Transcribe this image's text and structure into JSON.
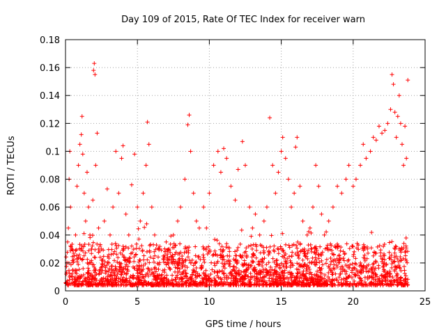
{
  "chart_data": {
    "type": "scatter",
    "title": "Day 109 of 2015, Rate Of TEC Index for receiver warn",
    "xlabel": "GPS time / hours",
    "ylabel": "ROTI / TECUs",
    "xlim": [
      0,
      25
    ],
    "ylim": [
      0,
      0.18
    ],
    "x_ticks": [
      0,
      5,
      10,
      15,
      20,
      25
    ],
    "x_tick_labels": [
      "0",
      "5",
      "10",
      "15",
      "20",
      "25"
    ],
    "y_ticks": [
      0,
      0.02,
      0.04,
      0.06,
      0.08,
      0.1,
      0.12,
      0.14,
      0.16,
      0.18
    ],
    "y_tick_labels": [
      "0",
      "0.02",
      "0.04",
      "0.06",
      "0.08",
      "0.1",
      "0.12",
      "0.14",
      "0.16",
      "0.18"
    ],
    "grid": true,
    "marker": "+",
    "series": [
      {
        "name": "ROTI",
        "color": "#ff0000",
        "points": [
          [
            0.05,
            0.012
          ],
          [
            0.1,
            0.02
          ],
          [
            0.15,
            0.035
          ],
          [
            0.2,
            0.045
          ],
          [
            0.25,
            0.08
          ],
          [
            0.3,
            0.1
          ],
          [
            0.35,
            0.06
          ],
          [
            0.4,
            0.03
          ],
          [
            0.5,
            0.015
          ],
          [
            0.6,
            0.025
          ],
          [
            0.7,
            0.04
          ],
          [
            0.8,
            0.075
          ],
          [
            0.9,
            0.09
          ],
          [
            1.0,
            0.105
          ],
          [
            1.1,
            0.112
          ],
          [
            1.15,
            0.125
          ],
          [
            1.2,
            0.098
          ],
          [
            1.3,
            0.07
          ],
          [
            1.4,
            0.05
          ],
          [
            1.5,
            0.085
          ],
          [
            1.6,
            0.06
          ],
          [
            1.7,
            0.04
          ],
          [
            1.8,
            0.03
          ],
          [
            1.9,
            0.065
          ],
          [
            1.95,
            0.158
          ],
          [
            2.0,
            0.163
          ],
          [
            2.05,
            0.155
          ],
          [
            2.1,
            0.09
          ],
          [
            2.2,
            0.113
          ],
          [
            2.3,
            0.045
          ],
          [
            2.5,
            0.03
          ],
          [
            2.7,
            0.05
          ],
          [
            2.9,
            0.073
          ],
          [
            3.1,
            0.04
          ],
          [
            3.3,
            0.06
          ],
          [
            3.5,
            0.1
          ],
          [
            3.7,
            0.07
          ],
          [
            3.9,
            0.095
          ],
          [
            4.0,
            0.104
          ],
          [
            4.2,
            0.055
          ],
          [
            4.4,
            0.04
          ],
          [
            4.6,
            0.076
          ],
          [
            4.8,
            0.098
          ],
          [
            5.0,
            0.06
          ],
          [
            5.2,
            0.05
          ],
          [
            5.4,
            0.07
          ],
          [
            5.6,
            0.09
          ],
          [
            5.7,
            0.121
          ],
          [
            5.8,
            0.105
          ],
          [
            6.0,
            0.06
          ],
          [
            6.2,
            0.04
          ],
          [
            6.5,
            0.03
          ],
          [
            6.8,
            0.025
          ],
          [
            7.0,
            0.035
          ],
          [
            7.2,
            0.03
          ],
          [
            7.5,
            0.04
          ],
          [
            7.8,
            0.05
          ],
          [
            8.0,
            0.06
          ],
          [
            8.3,
            0.08
          ],
          [
            8.5,
            0.119
          ],
          [
            8.6,
            0.126
          ],
          [
            8.7,
            0.1
          ],
          [
            8.9,
            0.07
          ],
          [
            9.1,
            0.05
          ],
          [
            9.3,
            0.045
          ],
          [
            9.6,
            0.06
          ],
          [
            9.8,
            0.045
          ],
          [
            10.0,
            0.07
          ],
          [
            10.3,
            0.09
          ],
          [
            10.6,
            0.1
          ],
          [
            10.8,
            0.085
          ],
          [
            11.0,
            0.102
          ],
          [
            11.2,
            0.095
          ],
          [
            11.5,
            0.075
          ],
          [
            11.8,
            0.065
          ],
          [
            12.0,
            0.087
          ],
          [
            12.3,
            0.107
          ],
          [
            12.5,
            0.09
          ],
          [
            12.8,
            0.06
          ],
          [
            13.0,
            0.045
          ],
          [
            13.2,
            0.055
          ],
          [
            13.5,
            0.04
          ],
          [
            13.8,
            0.05
          ],
          [
            14.0,
            0.06
          ],
          [
            14.2,
            0.124
          ],
          [
            14.4,
            0.09
          ],
          [
            14.6,
            0.07
          ],
          [
            14.8,
            0.085
          ],
          [
            15.0,
            0.1
          ],
          [
            15.1,
            0.11
          ],
          [
            15.3,
            0.095
          ],
          [
            15.5,
            0.08
          ],
          [
            15.7,
            0.06
          ],
          [
            15.9,
            0.07
          ],
          [
            16.0,
            0.103
          ],
          [
            16.1,
            0.11
          ],
          [
            16.3,
            0.075
          ],
          [
            16.5,
            0.05
          ],
          [
            16.8,
            0.04
          ],
          [
            17.0,
            0.045
          ],
          [
            17.2,
            0.06
          ],
          [
            17.4,
            0.09
          ],
          [
            17.6,
            0.075
          ],
          [
            17.8,
            0.055
          ],
          [
            18.0,
            0.04
          ],
          [
            18.3,
            0.05
          ],
          [
            18.6,
            0.06
          ],
          [
            18.9,
            0.075
          ],
          [
            19.2,
            0.07
          ],
          [
            19.5,
            0.08
          ],
          [
            19.7,
            0.09
          ],
          [
            20.0,
            0.075
          ],
          [
            20.2,
            0.08
          ],
          [
            20.5,
            0.09
          ],
          [
            20.7,
            0.105
          ],
          [
            20.9,
            0.095
          ],
          [
            21.2,
            0.1
          ],
          [
            21.4,
            0.11
          ],
          [
            21.6,
            0.108
          ],
          [
            21.8,
            0.118
          ],
          [
            22.0,
            0.113
          ],
          [
            22.2,
            0.115
          ],
          [
            22.4,
            0.12
          ],
          [
            22.6,
            0.13
          ],
          [
            22.7,
            0.155
          ],
          [
            22.8,
            0.148
          ],
          [
            22.9,
            0.128
          ],
          [
            23.0,
            0.11
          ],
          [
            23.1,
            0.125
          ],
          [
            23.2,
            0.14
          ],
          [
            23.3,
            0.12
          ],
          [
            23.4,
            0.105
          ],
          [
            23.5,
            0.09
          ],
          [
            23.6,
            0.118
          ],
          [
            23.7,
            0.095
          ],
          [
            23.8,
            0.151
          ]
        ]
      }
    ]
  }
}
